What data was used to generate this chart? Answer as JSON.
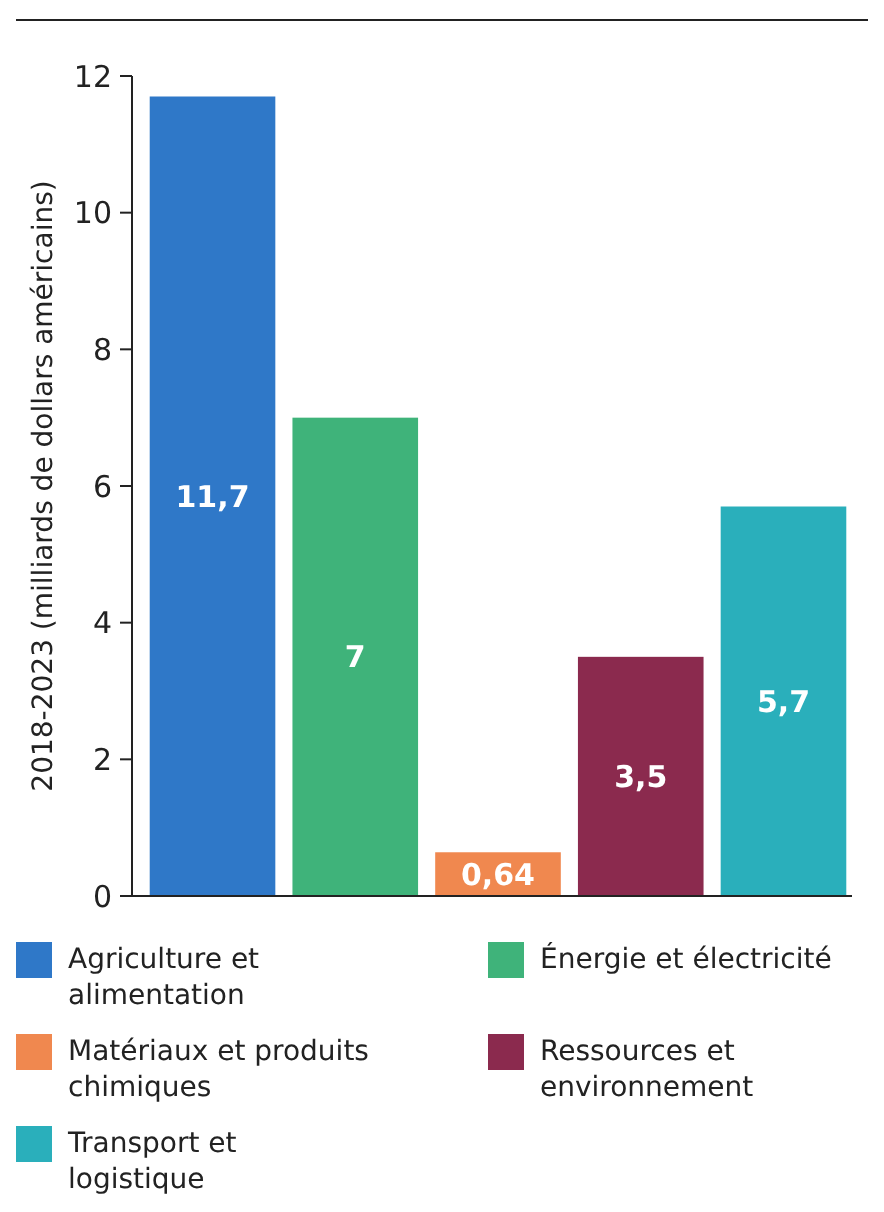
{
  "chart_data": {
    "type": "bar",
    "ylabel": "2018-2023 (milliards de dollars américains)",
    "categories": [
      null,
      null,
      null,
      null,
      null
    ],
    "series": [
      {
        "name": "Agriculture et alimentation",
        "color": "#2f78c8",
        "values": [
          11.7,
          null,
          null,
          null,
          null
        ],
        "value_labels": [
          "11,7",
          null,
          null,
          null,
          null
        ]
      },
      {
        "name": "Énergie et électricité",
        "color": "#3fb37a",
        "values": [
          null,
          7,
          null,
          null,
          null
        ],
        "value_labels": [
          null,
          "7",
          null,
          null,
          null
        ]
      },
      {
        "name": "Matériaux et produits chimiques",
        "color": "#f0884f",
        "values": [
          null,
          null,
          0.64,
          null,
          null
        ],
        "value_labels": [
          null,
          null,
          "0,64",
          null,
          null
        ]
      },
      {
        "name": "Ressources et environnement",
        "color": "#8b2a4e",
        "values": [
          null,
          null,
          null,
          3.5,
          null
        ],
        "value_labels": [
          null,
          null,
          null,
          "3,5",
          null
        ]
      },
      {
        "name": "Transport et logistique",
        "color": "#2aafbb",
        "values": [
          null,
          null,
          null,
          null,
          5.7
        ],
        "value_labels": [
          null,
          null,
          null,
          null,
          "5,7"
        ]
      }
    ],
    "ylim": [
      0,
      12
    ],
    "yticks": [
      0,
      2,
      4,
      6,
      8,
      10,
      12
    ],
    "tick_labels": "y",
    "legend": "bottom",
    "grid": false
  }
}
